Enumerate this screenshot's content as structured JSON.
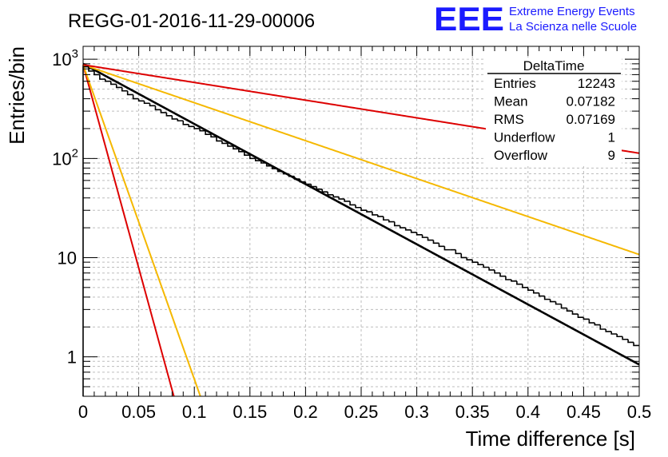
{
  "title": "REGG-01-2016-11-29-00006",
  "logo": {
    "mark": "EEE",
    "line1": "Extreme Energy Events",
    "line2": "La Scienza nelle Scuole",
    "color": "#1a1aff"
  },
  "stats": {
    "name": "DeltaTime",
    "rows": [
      {
        "label": "Entries",
        "value": "12243"
      },
      {
        "label": "Mean",
        "value": "0.07182"
      },
      {
        "label": "RMS",
        "value": "0.07169"
      },
      {
        "label": "Underflow",
        "value": "1"
      },
      {
        "label": "Overflow",
        "value": "9"
      }
    ]
  },
  "chart_data": {
    "type": "histogram",
    "title": "REGG-01-2016-11-29-00006",
    "xlabel": "Time difference [s]",
    "ylabel": "Entries/bin",
    "xlim": [
      0,
      0.5
    ],
    "ylim": [
      0.4,
      1350
    ],
    "yscale": "log",
    "grid": true,
    "x_ticks": [
      {
        "value": 0,
        "label": "0"
      },
      {
        "value": 0.05,
        "label": "0.05"
      },
      {
        "value": 0.1,
        "label": "0.1"
      },
      {
        "value": 0.15,
        "label": "0.15"
      },
      {
        "value": 0.2,
        "label": "0.2"
      },
      {
        "value": 0.25,
        "label": "0.25"
      },
      {
        "value": 0.3,
        "label": "0.3"
      },
      {
        "value": 0.35,
        "label": "0.35"
      },
      {
        "value": 0.4,
        "label": "0.4"
      },
      {
        "value": 0.45,
        "label": "0.45"
      },
      {
        "value": 0.5,
        "label": "0.5"
      }
    ],
    "y_ticks": [
      {
        "value": 1,
        "label": "1",
        "exp": ""
      },
      {
        "value": 10,
        "label": "10",
        "exp": ""
      },
      {
        "value": 100,
        "label": "10",
        "exp": "2"
      },
      {
        "value": 1000,
        "label": "10",
        "exp": "3"
      }
    ],
    "bin_width": 0.005,
    "bin_start": 0,
    "counts": [
      840,
      760,
      700,
      630,
      600,
      560,
      520,
      480,
      440,
      400,
      380,
      360,
      340,
      310,
      290,
      270,
      250,
      240,
      220,
      210,
      200,
      190,
      175,
      165,
      150,
      142,
      133,
      125,
      117,
      108,
      100,
      95,
      90,
      84,
      79,
      74,
      70,
      66,
      62,
      58,
      55,
      52,
      49,
      46,
      43,
      41,
      39,
      37,
      34,
      32,
      30,
      29,
      27,
      26,
      24,
      23,
      21,
      20,
      19,
      18,
      17,
      16,
      15,
      14,
      13,
      12,
      12,
      11,
      10,
      9.5,
      9,
      8.5,
      8,
      7.5,
      7,
      6.5,
      6,
      5.8,
      5.4,
      5,
      4.7,
      4.4,
      4.1,
      3.8,
      3.6,
      3.4,
      3.1,
      2.9,
      2.7,
      2.5,
      2.4,
      2.2,
      2.1,
      1.9,
      1.8,
      1.7,
      1.6,
      1.5,
      1.4,
      1.3
    ],
    "series": [
      {
        "name": "histogram DeltaTime",
        "color": "#000000"
      },
      {
        "name": "fit",
        "color": "#000000",
        "a": 900,
        "tau": 0.0716
      },
      {
        "name": "expected 1",
        "color": "#dd0000",
        "a": 880,
        "tau": 0.0106
      },
      {
        "name": "expected 2",
        "color": "#f5b800",
        "a": 880,
        "tau": 0.0137
      },
      {
        "name": "expected 3",
        "color": "#f5b800",
        "a": 880,
        "tau": 0.1135
      },
      {
        "name": "expected 4",
        "color": "#dd0000",
        "a": 880,
        "tau": 0.2435
      }
    ]
  }
}
